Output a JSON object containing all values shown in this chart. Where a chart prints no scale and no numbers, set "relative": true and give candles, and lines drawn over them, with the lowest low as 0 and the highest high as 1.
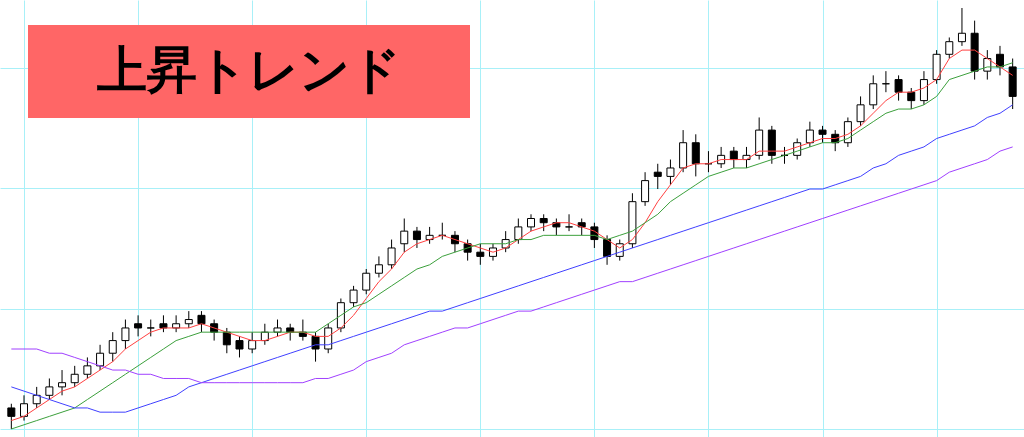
{
  "chart_data": {
    "type": "candlestick",
    "title": "上昇トレンド",
    "relative": true,
    "grid": true,
    "tick_labels": false,
    "categories": [
      null,
      null,
      null,
      null,
      null,
      null,
      null,
      null,
      null,
      null,
      null,
      null,
      null,
      null,
      null,
      null,
      null,
      null,
      null,
      null,
      null,
      null,
      null,
      null,
      null,
      null,
      null,
      null,
      null,
      null,
      null,
      null,
      null,
      null,
      null,
      null,
      null,
      null,
      null,
      null,
      null,
      null,
      null,
      null,
      null,
      null,
      null,
      null,
      null,
      null,
      null,
      null,
      null,
      null,
      null,
      null,
      null,
      null,
      null,
      null,
      null,
      null,
      null,
      null,
      null,
      null,
      null,
      null,
      null,
      null,
      null,
      null,
      null,
      null,
      null,
      null,
      null,
      null,
      null,
      null
    ],
    "ohlc": [
      [
        0.05,
        0.06,
        0,
        0.03
      ],
      [
        0.03,
        0.08,
        0.02,
        0.06
      ],
      [
        0.06,
        0.1,
        0.05,
        0.08
      ],
      [
        0.08,
        0.12,
        0.07,
        0.1
      ],
      [
        0.1,
        0.14,
        0.08,
        0.11
      ],
      [
        0.11,
        0.15,
        0.1,
        0.13
      ],
      [
        0.13,
        0.17,
        0.12,
        0.15
      ],
      [
        0.15,
        0.2,
        0.14,
        0.18
      ],
      [
        0.18,
        0.23,
        0.16,
        0.21
      ],
      [
        0.21,
        0.26,
        0.19,
        0.24
      ],
      [
        0.25,
        0.27,
        0.22,
        0.24
      ],
      [
        0.24,
        0.26,
        0.22,
        0.24
      ],
      [
        0.25,
        0.27,
        0.23,
        0.24
      ],
      [
        0.24,
        0.27,
        0.23,
        0.25
      ],
      [
        0.25,
        0.28,
        0.24,
        0.26
      ],
      [
        0.27,
        0.28,
        0.23,
        0.25
      ],
      [
        0.25,
        0.26,
        0.21,
        0.23
      ],
      [
        0.23,
        0.24,
        0.18,
        0.2
      ],
      [
        0.21,
        0.22,
        0.17,
        0.19
      ],
      [
        0.19,
        0.23,
        0.18,
        0.21
      ],
      [
        0.21,
        0.25,
        0.2,
        0.23
      ],
      [
        0.23,
        0.26,
        0.22,
        0.24
      ],
      [
        0.24,
        0.25,
        0.21,
        0.23
      ],
      [
        0.23,
        0.26,
        0.21,
        0.22
      ],
      [
        0.22,
        0.23,
        0.16,
        0.19
      ],
      [
        0.19,
        0.25,
        0.18,
        0.24
      ],
      [
        0.24,
        0.31,
        0.23,
        0.3
      ],
      [
        0.3,
        0.34,
        0.29,
        0.33
      ],
      [
        0.33,
        0.38,
        0.32,
        0.37
      ],
      [
        0.37,
        0.41,
        0.36,
        0.39
      ],
      [
        0.39,
        0.45,
        0.38,
        0.43
      ],
      [
        0.44,
        0.5,
        0.42,
        0.47
      ],
      [
        0.47,
        0.48,
        0.43,
        0.45
      ],
      [
        0.45,
        0.48,
        0.44,
        0.46
      ],
      [
        0.46,
        0.49,
        0.45,
        0.46
      ],
      [
        0.46,
        0.47,
        0.42,
        0.44
      ],
      [
        0.44,
        0.45,
        0.4,
        0.42
      ],
      [
        0.42,
        0.44,
        0.39,
        0.41
      ],
      [
        0.41,
        0.44,
        0.4,
        0.43
      ],
      [
        0.43,
        0.47,
        0.42,
        0.45
      ],
      [
        0.45,
        0.5,
        0.44,
        0.48
      ],
      [
        0.48,
        0.51,
        0.47,
        0.5
      ],
      [
        0.5,
        0.51,
        0.47,
        0.49
      ],
      [
        0.49,
        0.5,
        0.46,
        0.48
      ],
      [
        0.48,
        0.51,
        0.47,
        0.48
      ],
      [
        0.49,
        0.5,
        0.46,
        0.48
      ],
      [
        0.48,
        0.49,
        0.43,
        0.45
      ],
      [
        0.45,
        0.46,
        0.39,
        0.41
      ],
      [
        0.41,
        0.45,
        0.4,
        0.44
      ],
      [
        0.44,
        0.56,
        0.43,
        0.54
      ],
      [
        0.54,
        0.61,
        0.53,
        0.59
      ],
      [
        0.61,
        0.63,
        0.57,
        0.6
      ],
      [
        0.6,
        0.64,
        0.58,
        0.62
      ],
      [
        0.62,
        0.71,
        0.61,
        0.68
      ],
      [
        0.68,
        0.7,
        0.6,
        0.63
      ],
      [
        0.63,
        0.66,
        0.61,
        0.63
      ],
      [
        0.63,
        0.67,
        0.62,
        0.65
      ],
      [
        0.66,
        0.67,
        0.62,
        0.64
      ],
      [
        0.64,
        0.67,
        0.62,
        0.65
      ],
      [
        0.65,
        0.74,
        0.64,
        0.71
      ],
      [
        0.71,
        0.72,
        0.63,
        0.65
      ],
      [
        0.65,
        0.67,
        0.63,
        0.65
      ],
      [
        0.65,
        0.69,
        0.64,
        0.68
      ],
      [
        0.68,
        0.73,
        0.67,
        0.71
      ],
      [
        0.71,
        0.72,
        0.68,
        0.7
      ],
      [
        0.7,
        0.71,
        0.66,
        0.68
      ],
      [
        0.68,
        0.74,
        0.67,
        0.73
      ],
      [
        0.73,
        0.79,
        0.72,
        0.77
      ],
      [
        0.77,
        0.84,
        0.76,
        0.82
      ],
      [
        0.82,
        0.85,
        0.8,
        0.82
      ],
      [
        0.83,
        0.84,
        0.78,
        0.8
      ],
      [
        0.8,
        0.81,
        0.76,
        0.78
      ],
      [
        0.78,
        0.85,
        0.77,
        0.83
      ],
      [
        0.83,
        0.9,
        0.82,
        0.89
      ],
      [
        0.89,
        0.93,
        0.88,
        0.92
      ],
      [
        0.92,
        1.0,
        0.91,
        0.94
      ],
      [
        0.94,
        0.97,
        0.83,
        0.85
      ],
      [
        0.85,
        0.9,
        0.83,
        0.88
      ],
      [
        0.89,
        0.91,
        0.84,
        0.86
      ],
      [
        0.86,
        0.88,
        0.76,
        0.79
      ]
    ],
    "series": [
      {
        "type": "line",
        "color": "#ff4040",
        "values": [
          0.02,
          0.03,
          0.05,
          0.07,
          0.09,
          0.1,
          0.12,
          0.14,
          0.16,
          0.19,
          0.21,
          0.23,
          0.24,
          0.24,
          0.24,
          0.25,
          0.24,
          0.23,
          0.22,
          0.21,
          0.21,
          0.22,
          0.23,
          0.23,
          0.22,
          0.22,
          0.24,
          0.27,
          0.31,
          0.35,
          0.38,
          0.42,
          0.44,
          0.45,
          0.46,
          0.45,
          0.44,
          0.43,
          0.42,
          0.43,
          0.45,
          0.47,
          0.48,
          0.49,
          0.49,
          0.48,
          0.47,
          0.45,
          0.43,
          0.45,
          0.49,
          0.54,
          0.58,
          0.62,
          0.63,
          0.63,
          0.64,
          0.64,
          0.64,
          0.66,
          0.66,
          0.66,
          0.67,
          0.68,
          0.69,
          0.69,
          0.7,
          0.72,
          0.75,
          0.78,
          0.8,
          0.8,
          0.81,
          0.83,
          0.88,
          0.9,
          0.9,
          0.88,
          0.86,
          0.84
        ]
      },
      {
        "type": "line",
        "color": "#3ca03c",
        "values": [
          0.0,
          0.01,
          0.02,
          0.03,
          0.04,
          0.05,
          0.07,
          0.09,
          0.11,
          0.13,
          0.15,
          0.17,
          0.19,
          0.21,
          0.22,
          0.23,
          0.23,
          0.23,
          0.23,
          0.23,
          0.23,
          0.23,
          0.23,
          0.23,
          0.23,
          0.25,
          0.27,
          0.29,
          0.3,
          0.32,
          0.34,
          0.36,
          0.38,
          0.39,
          0.41,
          0.42,
          0.43,
          0.44,
          0.44,
          0.44,
          0.45,
          0.45,
          0.46,
          0.46,
          0.46,
          0.46,
          0.46,
          0.45,
          0.46,
          0.47,
          0.49,
          0.51,
          0.54,
          0.56,
          0.58,
          0.6,
          0.61,
          0.62,
          0.62,
          0.63,
          0.64,
          0.65,
          0.66,
          0.67,
          0.68,
          0.68,
          0.69,
          0.71,
          0.73,
          0.75,
          0.76,
          0.76,
          0.77,
          0.79,
          0.83,
          0.84,
          0.85,
          0.86,
          0.86,
          0.87
        ]
      },
      {
        "type": "line",
        "color": "#4040ff",
        "values": [
          0.1,
          0.09,
          0.08,
          0.07,
          0.06,
          0.05,
          0.05,
          0.04,
          0.04,
          0.04,
          0.05,
          0.06,
          0.07,
          0.08,
          0.1,
          0.11,
          0.12,
          0.13,
          0.14,
          0.15,
          0.16,
          0.17,
          0.18,
          0.19,
          0.2,
          0.2,
          0.21,
          0.22,
          0.23,
          0.24,
          0.25,
          0.26,
          0.27,
          0.28,
          0.28,
          0.29,
          0.3,
          0.31,
          0.32,
          0.33,
          0.34,
          0.35,
          0.36,
          0.37,
          0.38,
          0.39,
          0.4,
          0.41,
          0.42,
          0.43,
          0.44,
          0.45,
          0.46,
          0.47,
          0.48,
          0.49,
          0.5,
          0.51,
          0.52,
          0.53,
          0.54,
          0.55,
          0.56,
          0.57,
          0.57,
          0.58,
          0.59,
          0.6,
          0.62,
          0.63,
          0.65,
          0.66,
          0.67,
          0.69,
          0.7,
          0.71,
          0.72,
          0.74,
          0.75,
          0.77
        ]
      },
      {
        "type": "line",
        "color": "#a040ff",
        "values": [
          0.19,
          0.19,
          0.19,
          0.18,
          0.18,
          0.17,
          0.16,
          0.15,
          0.14,
          0.14,
          0.13,
          0.13,
          0.12,
          0.12,
          0.12,
          0.11,
          0.11,
          0.11,
          0.11,
          0.11,
          0.11,
          0.11,
          0.11,
          0.11,
          0.12,
          0.12,
          0.13,
          0.14,
          0.16,
          0.17,
          0.18,
          0.2,
          0.21,
          0.22,
          0.23,
          0.24,
          0.24,
          0.25,
          0.26,
          0.27,
          0.28,
          0.28,
          0.29,
          0.3,
          0.31,
          0.32,
          0.33,
          0.34,
          0.35,
          0.35,
          0.36,
          0.37,
          0.38,
          0.39,
          0.4,
          0.41,
          0.42,
          0.43,
          0.44,
          0.45,
          0.46,
          0.47,
          0.48,
          0.49,
          0.5,
          0.51,
          0.52,
          0.53,
          0.54,
          0.55,
          0.56,
          0.57,
          0.58,
          0.59,
          0.61,
          0.62,
          0.63,
          0.64,
          0.66,
          0.67
        ]
      }
    ]
  }
}
